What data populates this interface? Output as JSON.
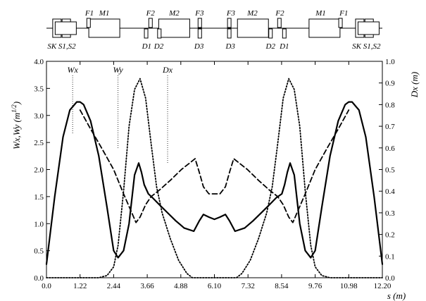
{
  "lattice": {
    "elements_top": [
      {
        "name": "F1",
        "s": 1.56
      },
      {
        "name": "M1",
        "s": 2.1
      },
      {
        "name": "F2",
        "s": 3.78
      },
      {
        "name": "M2",
        "s": 4.64
      },
      {
        "name": "F3",
        "s": 5.56
      },
      {
        "name": "F3",
        "s": 6.7
      },
      {
        "name": "M2",
        "s": 7.48
      },
      {
        "name": "F2",
        "s": 8.48
      },
      {
        "name": "M1",
        "s": 9.96
      },
      {
        "name": "F1",
        "s": 10.8
      }
    ],
    "elements_bottom": [
      {
        "name": "SK S1,S2",
        "s": 0.55
      },
      {
        "name": "D1",
        "s": 3.64
      },
      {
        "name": "D2",
        "s": 4.08
      },
      {
        "name": "D3",
        "s": 5.54
      },
      {
        "name": "D3",
        "s": 6.68
      },
      {
        "name": "D2",
        "s": 8.14
      },
      {
        "name": "D1",
        "s": 8.64
      },
      {
        "name": "SK S1,S2",
        "s": 11.62
      }
    ]
  },
  "chart_data": {
    "type": "line",
    "xlabel": "s (m)",
    "ylabel_left": "Wx,Wy (m",
    "ylabel_left_sup": "1/2",
    "ylabel_left_close": ")",
    "ylabel_right": "Dx (m)",
    "xlim": [
      0,
      12.2
    ],
    "ylim_left": [
      0,
      4.0
    ],
    "ylim_right": [
      0,
      1.0
    ],
    "x_ticks": [
      "0.0",
      "1.22",
      "2.44",
      "3.66",
      "4.88",
      "6.10",
      "7.32",
      "8.54",
      "9.76",
      "10.98",
      "12.20"
    ],
    "y_ticks_left": [
      "0.0",
      "0.5",
      "1.0",
      "1.5",
      "2.0",
      "2.5",
      "3.0",
      "3.5",
      "4.0"
    ],
    "y_ticks_right": [
      "0.0",
      "0.1",
      "0.2",
      "0.3",
      "0.4",
      "0.5",
      "0.6",
      "0.7",
      "0.8",
      "0.9",
      "1.0"
    ],
    "annotations": [
      {
        "label": "Wx",
        "s": 0.95
      },
      {
        "label": "Wy",
        "s": 2.6
      },
      {
        "label": "Dx",
        "s": 4.4
      }
    ],
    "series": [
      {
        "name": "Wx",
        "style": "solid",
        "axis": "left",
        "x": [
          0,
          0.3,
          0.6,
          0.85,
          1.1,
          1.22,
          1.35,
          1.6,
          1.9,
          2.2,
          2.44,
          2.6,
          2.8,
          3.0,
          3.2,
          3.35,
          3.45,
          3.55,
          3.7,
          3.85,
          4.1,
          4.4,
          4.7,
          5.0,
          5.35,
          5.55,
          5.7,
          5.9,
          6.1,
          6.3,
          6.5,
          6.65,
          6.85,
          7.2,
          7.5,
          7.8,
          8.1,
          8.35,
          8.55,
          8.65,
          8.75,
          8.85,
          9.0,
          9.2,
          9.4,
          9.6,
          9.76,
          10.0,
          10.3,
          10.6,
          10.85,
          10.98,
          11.1,
          11.35,
          11.6,
          11.9,
          12.2
        ],
        "y": [
          0.25,
          1.5,
          2.6,
          3.1,
          3.25,
          3.25,
          3.2,
          2.9,
          2.25,
          1.3,
          0.5,
          0.37,
          0.5,
          1.0,
          1.9,
          2.12,
          1.95,
          1.72,
          1.55,
          1.48,
          1.35,
          1.2,
          1.05,
          0.92,
          0.86,
          1.05,
          1.17,
          1.12,
          1.08,
          1.12,
          1.17,
          1.05,
          0.86,
          0.92,
          1.05,
          1.2,
          1.35,
          1.48,
          1.55,
          1.72,
          1.95,
          2.12,
          1.9,
          1.0,
          0.5,
          0.37,
          0.5,
          1.3,
          2.25,
          2.9,
          3.2,
          3.25,
          3.25,
          3.1,
          2.6,
          1.5,
          0.25
        ]
      },
      {
        "name": "Wy",
        "style": "dashed",
        "axis": "left",
        "x": [
          1.22,
          1.6,
          2.0,
          2.44,
          2.8,
          3.1,
          3.25,
          3.4,
          3.6,
          3.8,
          4.1,
          4.5,
          4.9,
          5.2,
          5.4,
          5.55,
          5.7,
          5.9,
          6.1,
          6.3,
          6.5,
          6.65,
          6.8,
          7.0,
          7.3,
          7.7,
          8.1,
          8.4,
          8.6,
          8.8,
          8.95,
          9.1,
          9.4,
          9.76,
          10.2,
          10.6,
          10.98
        ],
        "y": [
          3.1,
          2.75,
          2.4,
          2.0,
          1.55,
          1.2,
          1.02,
          1.12,
          1.35,
          1.5,
          1.62,
          1.8,
          2.0,
          2.12,
          2.2,
          1.95,
          1.68,
          1.55,
          1.55,
          1.55,
          1.68,
          1.95,
          2.2,
          2.12,
          2.0,
          1.8,
          1.62,
          1.5,
          1.35,
          1.12,
          1.02,
          1.2,
          1.55,
          2.0,
          2.4,
          2.75,
          3.1
        ]
      },
      {
        "name": "Dx",
        "style": "dotted",
        "axis": "right",
        "x": [
          0,
          1.9,
          2.2,
          2.44,
          2.6,
          2.8,
          3.0,
          3.2,
          3.4,
          3.6,
          3.8,
          4.0,
          4.2,
          4.5,
          4.8,
          5.1,
          5.3,
          5.6,
          6.1,
          6.6,
          6.9,
          7.1,
          7.4,
          7.7,
          8.0,
          8.2,
          8.4,
          8.6,
          8.8,
          9.0,
          9.2,
          9.4,
          9.6,
          9.76,
          10.0,
          10.3,
          12.2
        ],
        "y": [
          0,
          0,
          0.01,
          0.05,
          0.15,
          0.4,
          0.7,
          0.87,
          0.92,
          0.83,
          0.62,
          0.42,
          0.3,
          0.18,
          0.08,
          0.02,
          0,
          0,
          0,
          0,
          0,
          0.02,
          0.08,
          0.18,
          0.3,
          0.42,
          0.62,
          0.83,
          0.92,
          0.87,
          0.7,
          0.4,
          0.15,
          0.05,
          0.01,
          0,
          0
        ]
      }
    ]
  }
}
